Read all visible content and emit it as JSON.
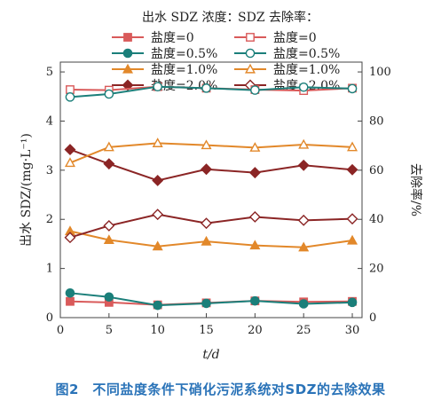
{
  "chart_data": {
    "type": "line",
    "x": [
      1,
      5,
      10,
      15,
      20,
      25,
      30
    ],
    "xlabel": "t/d",
    "ylabel_left": "出水 SDZ/(mg·L⁻¹)",
    "ylabel_right": "去除率/%",
    "xlim": [
      0,
      31
    ],
    "ylim_left": [
      0,
      5.2
    ],
    "ylim_right": [
      0,
      104
    ],
    "xticks": [
      "0",
      "5",
      "10",
      "15",
      "20",
      "25",
      "30"
    ],
    "yticks_left": [
      "0",
      "1",
      "2",
      "3",
      "4",
      "5"
    ],
    "yticks_right": [
      "0",
      "20",
      "40",
      "60",
      "80",
      "100"
    ],
    "legend_left_title": "出水 SDZ 浓度：",
    "legend_right_title": "SDZ 去除率：",
    "legend_placement": "top",
    "series": [
      {
        "name": "盐度=0",
        "group": "concentration",
        "axis": "left",
        "marker": "square",
        "fill": "filled",
        "color": "#d95a5a",
        "values": [
          0.33,
          0.31,
          0.26,
          0.3,
          0.34,
          0.32,
          0.33
        ]
      },
      {
        "name": "盐度=0.5%",
        "group": "concentration",
        "axis": "left",
        "marker": "circle",
        "fill": "filled",
        "color": "#1b7f7a",
        "values": [
          0.5,
          0.42,
          0.25,
          0.29,
          0.34,
          0.28,
          0.31
        ]
      },
      {
        "name": "盐度=1.0%",
        "group": "concentration",
        "axis": "left",
        "marker": "triangle",
        "fill": "filled",
        "color": "#e2882a",
        "values": [
          1.76,
          1.58,
          1.45,
          1.55,
          1.47,
          1.43,
          1.57
        ]
      },
      {
        "name": "盐度=2.0%",
        "group": "concentration",
        "axis": "left",
        "marker": "diamond",
        "fill": "filled",
        "color": "#8b2525",
        "values": [
          3.42,
          3.13,
          2.79,
          3.02,
          2.95,
          3.1,
          3.01
        ]
      },
      {
        "name": "盐度=0",
        "group": "removal",
        "axis": "right",
        "marker": "square",
        "fill": "open",
        "color": "#d95a5a",
        "values": [
          92.8,
          92.6,
          94.0,
          93.4,
          92.8,
          92.4,
          93.4
        ]
      },
      {
        "name": "盐度=0.5%",
        "group": "removal",
        "axis": "right",
        "marker": "circle",
        "fill": "open",
        "color": "#1b7f7a",
        "values": [
          89.8,
          91.0,
          94.0,
          93.4,
          92.6,
          93.8,
          93.2
        ]
      },
      {
        "name": "盐度=1.0%",
        "group": "removal",
        "axis": "right",
        "marker": "triangle",
        "fill": "open",
        "color": "#e2882a",
        "values": [
          63.0,
          69.4,
          71.0,
          70.2,
          69.2,
          70.4,
          69.4
        ]
      },
      {
        "name": "盐度=2.0%",
        "group": "removal",
        "axis": "right",
        "marker": "diamond",
        "fill": "open",
        "color": "#8b2525",
        "values": [
          32.6,
          37.4,
          42.0,
          38.4,
          41.0,
          39.6,
          40.2
        ]
      }
    ]
  },
  "caption": "图2　不同盐度条件下硝化污泥系统对SDZ的去除效果"
}
